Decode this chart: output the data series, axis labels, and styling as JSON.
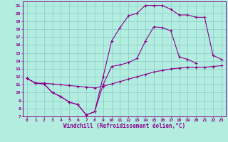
{
  "xlabel": "Windchill (Refroidissement éolien,°C)",
  "bg_color": "#b3ede0",
  "grid_color": "#8ecece",
  "line_color": "#8b008b",
  "xlim": [
    -0.5,
    23.5
  ],
  "ylim": [
    7,
    21.5
  ],
  "xticks": [
    0,
    1,
    2,
    3,
    4,
    5,
    6,
    7,
    8,
    9,
    10,
    11,
    12,
    13,
    14,
    15,
    16,
    17,
    18,
    19,
    20,
    21,
    22,
    23
  ],
  "yticks": [
    7,
    8,
    9,
    10,
    11,
    12,
    13,
    14,
    15,
    16,
    17,
    18,
    19,
    20,
    21
  ],
  "line1_x": [
    0,
    1,
    2,
    3,
    4,
    5,
    6,
    7,
    8,
    9,
    10,
    11,
    12,
    13,
    14,
    15,
    16,
    17,
    18,
    19,
    20
  ],
  "line1_y": [
    11.8,
    11.2,
    11.1,
    10.0,
    9.5,
    8.8,
    8.5,
    7.2,
    7.6,
    11.0,
    13.3,
    13.5,
    13.8,
    14.3,
    16.5,
    18.3,
    18.2,
    17.8,
    14.5,
    14.2,
    13.7
  ],
  "line2_x": [
    0,
    1,
    2,
    3,
    4,
    5,
    6,
    7,
    8,
    9,
    10,
    11,
    12,
    13,
    14,
    15,
    16,
    17,
    18,
    19,
    20,
    21,
    22,
    23
  ],
  "line2_y": [
    11.8,
    11.2,
    11.2,
    11.1,
    11.0,
    10.9,
    10.8,
    10.7,
    10.6,
    10.8,
    11.1,
    11.4,
    11.7,
    12.0,
    12.3,
    12.6,
    12.8,
    13.0,
    13.1,
    13.2,
    13.2,
    13.2,
    13.3,
    13.4
  ],
  "line3_x": [
    0,
    1,
    2,
    3,
    4,
    5,
    6,
    7,
    8,
    9,
    10,
    11,
    12,
    13,
    14,
    15,
    16,
    17,
    18,
    19,
    20,
    21,
    22,
    23
  ],
  "line3_y": [
    11.8,
    11.2,
    11.1,
    10.0,
    9.5,
    8.8,
    8.5,
    7.2,
    7.6,
    12.0,
    16.5,
    18.2,
    19.7,
    20.0,
    21.0,
    21.0,
    21.0,
    20.5,
    19.8,
    19.8,
    19.5,
    19.5,
    14.7,
    14.2
  ]
}
